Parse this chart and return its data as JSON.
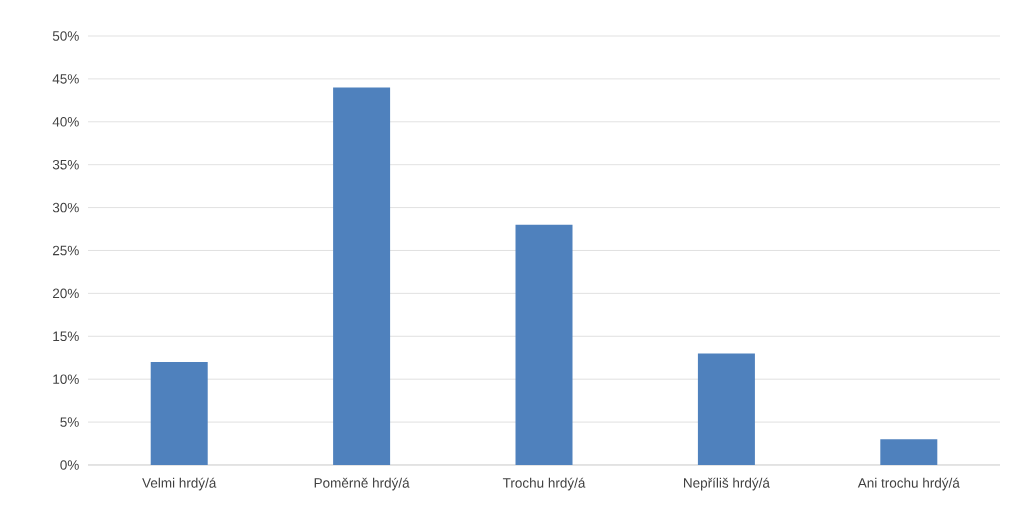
{
  "chart_data": {
    "type": "bar",
    "categories": [
      "Velmi hrdý/á",
      "Poměrně hrdý/á",
      "Trochu hrdý/á",
      "Nepříliš hrdý/á",
      "Ani trochu hrdý/á"
    ],
    "values": [
      12,
      44,
      28,
      13,
      3
    ],
    "color": "#4f81bd",
    "ylim": [
      0,
      50
    ],
    "yticks": [
      {
        "value": 0,
        "label": "0%"
      },
      {
        "value": 5,
        "label": "5%"
      },
      {
        "value": 10,
        "label": "10%"
      },
      {
        "value": 15,
        "label": "15%"
      },
      {
        "value": 20,
        "label": "20%"
      },
      {
        "value": 25,
        "label": "25%"
      },
      {
        "value": 30,
        "label": "30%"
      },
      {
        "value": 35,
        "label": "35%"
      },
      {
        "value": 40,
        "label": "40%"
      },
      {
        "value": 45,
        "label": "45%"
      },
      {
        "value": 50,
        "label": "50%"
      }
    ],
    "grid": "y"
  }
}
